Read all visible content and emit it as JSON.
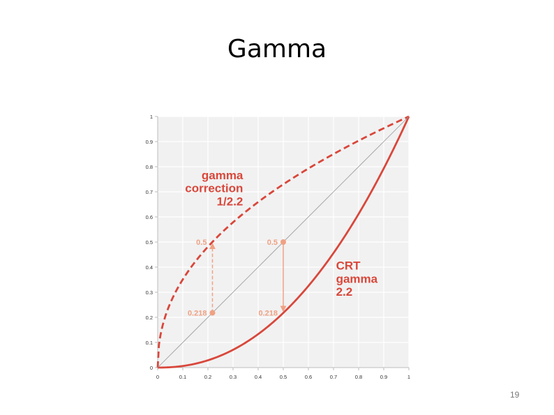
{
  "slide": {
    "title": "Gamma",
    "page_number": "19"
  },
  "colors": {
    "curve": "#d9473b",
    "guide": "#f0a183",
    "diagonal": "#999999",
    "plot_bg": "#f1f1f1",
    "grid": "#ffffff",
    "axis": "#bbbbbb"
  },
  "chart_data": {
    "type": "line",
    "xlim": [
      0,
      1
    ],
    "ylim": [
      0,
      1
    ],
    "grid": true,
    "x_ticks": [
      "0",
      "0.1",
      "0.2",
      "0.3",
      "0.4",
      "0.5",
      "0.6",
      "0.7",
      "0.8",
      "0.9",
      "1"
    ],
    "y_ticks": [
      "0",
      "0.1",
      "0.2",
      "0.3",
      "0.4",
      "0.5",
      "0.6",
      "0.7",
      "0.8",
      "0.9",
      "1"
    ],
    "series": [
      {
        "style": "dashed",
        "exponent": 0.4545,
        "x": [
          0,
          0.01,
          0.02,
          0.05,
          0.1,
          0.15,
          0.2,
          0.25,
          0.3,
          0.35,
          0.4,
          0.45,
          0.5,
          0.55,
          0.6,
          0.65,
          0.7,
          0.75,
          0.8,
          0.85,
          0.9,
          0.95,
          1
        ],
        "y": [
          0,
          0.123,
          0.169,
          0.256,
          0.351,
          0.422,
          0.481,
          0.533,
          0.579,
          0.621,
          0.659,
          0.696,
          0.73,
          0.762,
          0.793,
          0.822,
          0.85,
          0.877,
          0.904,
          0.929,
          0.953,
          0.977,
          1
        ]
      },
      {
        "style": "solid",
        "exponent": 2.2,
        "x": [
          0,
          0.05,
          0.1,
          0.15,
          0.2,
          0.25,
          0.3,
          0.35,
          0.4,
          0.45,
          0.5,
          0.55,
          0.6,
          0.65,
          0.7,
          0.75,
          0.8,
          0.85,
          0.9,
          0.95,
          1
        ],
        "y": [
          0,
          0.001,
          0.006,
          0.015,
          0.029,
          0.047,
          0.071,
          0.099,
          0.133,
          0.173,
          0.218,
          0.268,
          0.325,
          0.387,
          0.456,
          0.531,
          0.612,
          0.7,
          0.793,
          0.893,
          1
        ]
      },
      {
        "style": "reference",
        "x": [
          0,
          1
        ],
        "y": [
          0,
          1
        ]
      }
    ],
    "annotations": [
      {
        "lines": [
          "gamma",
          "correction",
          "1/2.2"
        ],
        "x": 0.34,
        "y": 0.75,
        "align": "end"
      },
      {
        "lines": [
          "CRT",
          "gamma",
          "2.2"
        ],
        "x": 0.71,
        "y": 0.39,
        "align": "start"
      }
    ],
    "markers": [
      {
        "x": 0.218,
        "from": 0.218,
        "to": 0.5,
        "from_label": "0.218",
        "to_label": "0.5",
        "style": "dashed"
      },
      {
        "x": 0.5,
        "from": 0.5,
        "to": 0.218,
        "from_label": "0.5",
        "to_label": "0.218",
        "style": "solid"
      }
    ]
  }
}
